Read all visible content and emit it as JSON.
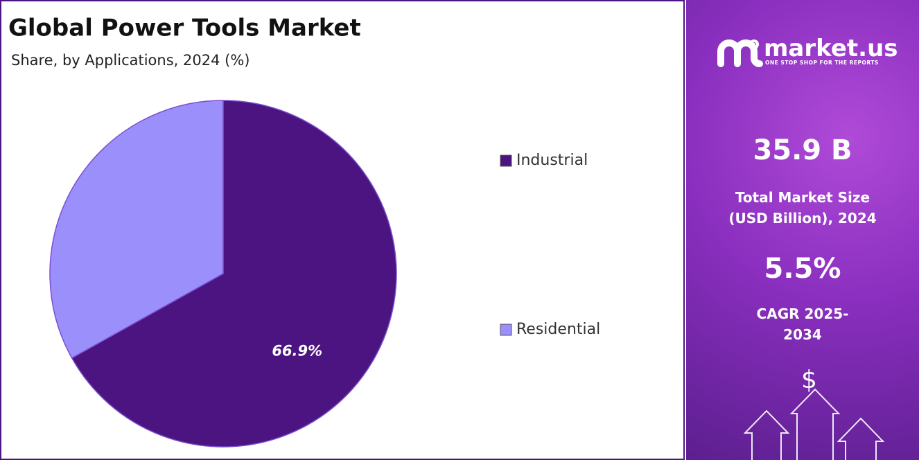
{
  "chart_data": {
    "type": "pie",
    "title": "Global Power Tools Market",
    "subtitle": "Share, by Applications, 2024 (%)",
    "categories": [
      "Industrial",
      "Residential"
    ],
    "values": [
      66.9,
      33.1
    ],
    "value_labels": [
      "66.9%",
      null
    ],
    "colors": [
      "#4b1480",
      "#9b8ffc"
    ],
    "legend": "right"
  },
  "side_panel": {
    "logo": "market.us",
    "tagline": "ONE STOP SHOP FOR THE REPORTS",
    "market_size": "35.9 B",
    "market_size_label": "Total Market Size (USD Billion), 2024",
    "cagr": "5.5%",
    "cagr_label": "CAGR 2025-2034",
    "icon": "$"
  }
}
